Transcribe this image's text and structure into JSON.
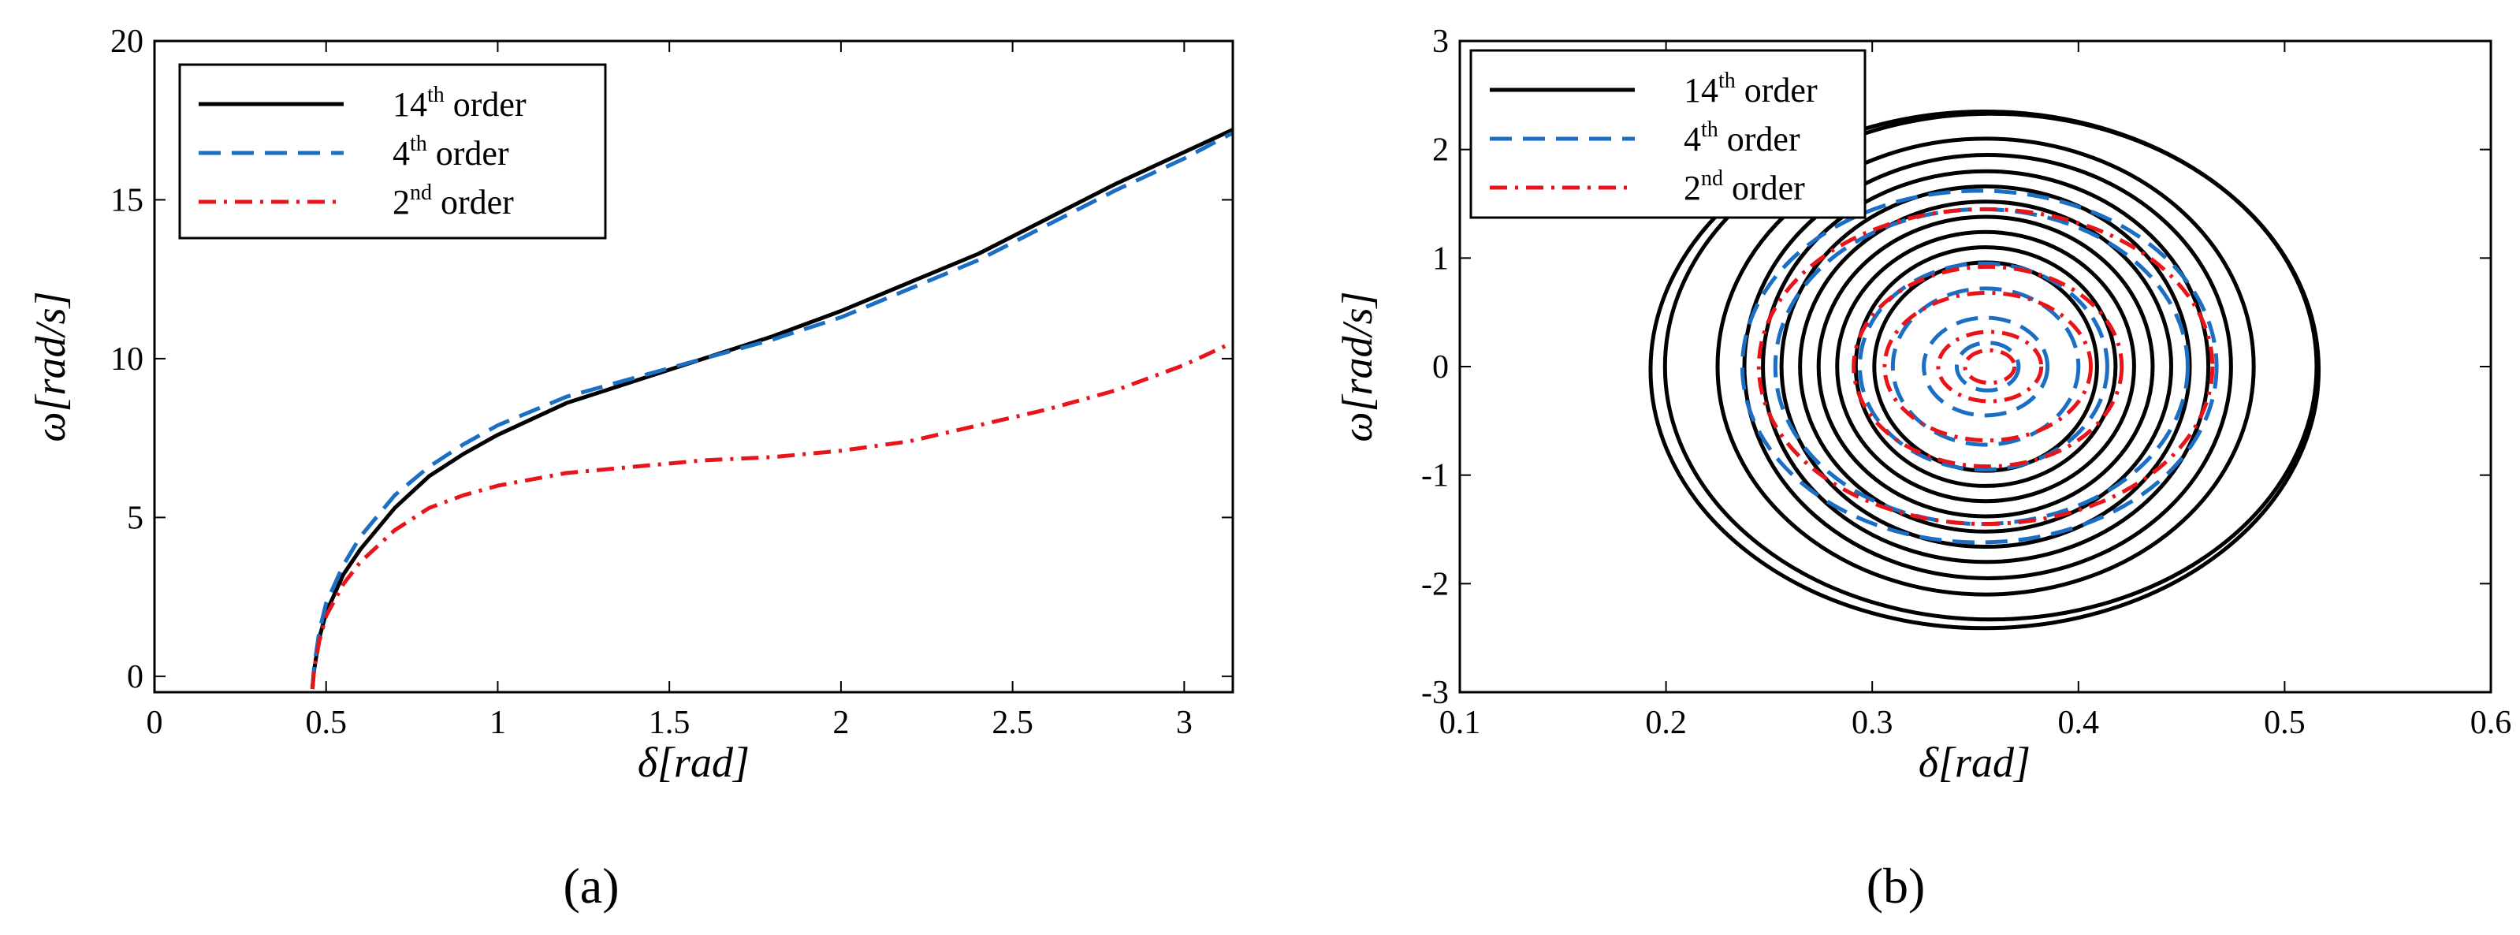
{
  "chart_data": [
    {
      "type": "line",
      "panel_label": "(a)",
      "xlabel": "δ[rad]",
      "ylabel": "ω[rad/s]",
      "xlim": [
        0,
        3.14159
      ],
      "ylim": [
        -0.5,
        20
      ],
      "xticks": [
        0,
        0.5,
        1,
        1.5,
        2,
        2.5,
        3
      ],
      "yticks": [
        0,
        5,
        10,
        15,
        20
      ],
      "legend_position": "top-left",
      "series": [
        {
          "name": "14th order",
          "name_base": "14",
          "name_sup": "th",
          "name_rest": " order",
          "color": "#000000",
          "dash": "solid",
          "x": [
            0.46,
            0.465,
            0.48,
            0.5,
            0.55,
            0.6,
            0.7,
            0.8,
            0.9,
            1.0,
            1.2,
            1.4,
            1.6,
            1.8,
            2.0,
            2.2,
            2.4,
            2.6,
            2.8,
            3.0,
            3.14
          ],
          "y": [
            -0.4,
            0.2,
            1.2,
            2.0,
            3.2,
            4.0,
            5.3,
            6.3,
            7.0,
            7.6,
            8.6,
            9.3,
            10.0,
            10.7,
            11.5,
            12.4,
            13.3,
            14.4,
            15.5,
            16.5,
            17.2
          ]
        },
        {
          "name": "4th order",
          "name_base": "4",
          "name_sup": "th",
          "name_rest": " order",
          "color": "#1a6fc4",
          "dash": "dashed",
          "x": [
            0.46,
            0.465,
            0.48,
            0.5,
            0.55,
            0.6,
            0.7,
            0.8,
            0.9,
            1.0,
            1.2,
            1.4,
            1.6,
            1.8,
            2.0,
            2.2,
            2.4,
            2.6,
            2.8,
            3.0,
            3.14
          ],
          "y": [
            -0.4,
            0.3,
            1.4,
            2.3,
            3.5,
            4.4,
            5.7,
            6.6,
            7.3,
            7.9,
            8.8,
            9.4,
            10.0,
            10.6,
            11.3,
            12.2,
            13.1,
            14.2,
            15.3,
            16.3,
            17.1
          ]
        },
        {
          "name": "2nd order",
          "name_base": "2",
          "name_sup": "nd",
          "name_rest": " order",
          "color": "#e8141a",
          "dash": "dashdot",
          "x": [
            0.46,
            0.465,
            0.48,
            0.5,
            0.55,
            0.6,
            0.7,
            0.8,
            0.9,
            1.0,
            1.2,
            1.4,
            1.6,
            1.8,
            2.0,
            2.2,
            2.4,
            2.6,
            2.8,
            3.0,
            3.14
          ],
          "y": [
            -0.4,
            0.2,
            1.1,
            1.9,
            2.9,
            3.6,
            4.6,
            5.3,
            5.7,
            6.0,
            6.4,
            6.6,
            6.8,
            6.9,
            7.1,
            7.4,
            7.9,
            8.4,
            9.0,
            9.8,
            10.5
          ]
        }
      ]
    },
    {
      "type": "line",
      "panel_label": "(b)",
      "xlabel": "δ[rad]",
      "ylabel": "ω[rad/s]",
      "xlim": [
        0.1,
        0.6
      ],
      "ylim": [
        -3,
        3
      ],
      "xticks": [
        0.1,
        0.2,
        0.3,
        0.4,
        0.5,
        0.6
      ],
      "yticks": [
        -3,
        -2,
        -1,
        0,
        1,
        2,
        3
      ],
      "legend_position": "top-left",
      "series": [
        {
          "name": "14th order",
          "name_base": "14",
          "name_sup": "th",
          "name_rest": " order",
          "color": "#000000",
          "dash": "solid",
          "orbits": [
            {
              "cx": 0.3545,
              "cy": -0.03,
              "rx": 0.162,
              "ry": 2.38
            },
            {
              "cx": 0.3575,
              "cy": 0.0,
              "rx": 0.158,
              "ry": 2.33
            },
            {
              "cx": 0.355,
              "cy": 0.0,
              "rx": 0.13,
              "ry": 2.1
            },
            {
              "cx": 0.356,
              "cy": 0.0,
              "rx": 0.118,
              "ry": 1.95
            },
            {
              "cx": 0.355,
              "cy": 0.0,
              "rx": 0.108,
              "ry": 1.8
            },
            {
              "cx": 0.355,
              "cy": 0.0,
              "rx": 0.099,
              "ry": 1.66
            },
            {
              "cx": 0.355,
              "cy": 0.0,
              "rx": 0.09,
              "ry": 1.52
            },
            {
              "cx": 0.355,
              "cy": 0.0,
              "rx": 0.081,
              "ry": 1.38
            },
            {
              "cx": 0.355,
              "cy": 0.0,
              "rx": 0.072,
              "ry": 1.24
            },
            {
              "cx": 0.355,
              "cy": 0.0,
              "rx": 0.063,
              "ry": 1.1
            },
            {
              "cx": 0.355,
              "cy": 0.0,
              "rx": 0.054,
              "ry": 0.96
            }
          ]
        },
        {
          "name": "4th order",
          "name_base": "4",
          "name_sup": "th",
          "name_rest": " order",
          "color": "#1a6fc4",
          "dash": "dashed",
          "orbits": [
            {
              "cx": 0.352,
              "cy": 0.0,
              "rx": 0.115,
              "ry": 1.62
            },
            {
              "cx": 0.353,
              "cy": 0.0,
              "rx": 0.1,
              "ry": 1.45
            },
            {
              "cx": 0.354,
              "cy": 0.0,
              "rx": 0.06,
              "ry": 0.95
            },
            {
              "cx": 0.355,
              "cy": 0.0,
              "rx": 0.045,
              "ry": 0.72
            },
            {
              "cx": 0.355,
              "cy": 0.0,
              "rx": 0.03,
              "ry": 0.45
            },
            {
              "cx": 0.356,
              "cy": 0.0,
              "rx": 0.015,
              "ry": 0.22
            }
          ]
        },
        {
          "name": "2nd order",
          "name_base": "2",
          "name_sup": "nd",
          "name_rest": " order",
          "color": "#e8141a",
          "dash": "dashdot",
          "orbits": [
            {
              "cx": 0.355,
              "cy": 0.0,
              "rx": 0.11,
              "ry": 1.45
            },
            {
              "cx": 0.356,
              "cy": 0.0,
              "rx": 0.065,
              "ry": 0.92
            },
            {
              "cx": 0.356,
              "cy": 0.0,
              "rx": 0.05,
              "ry": 0.68
            },
            {
              "cx": 0.357,
              "cy": 0.0,
              "rx": 0.025,
              "ry": 0.32
            },
            {
              "cx": 0.357,
              "cy": 0.0,
              "rx": 0.012,
              "ry": 0.15
            }
          ]
        }
      ]
    }
  ]
}
